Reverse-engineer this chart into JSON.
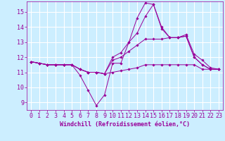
{
  "background_color": "#cceeff",
  "grid_color": "#b8d8d8",
  "line_color": "#990099",
  "marker_color": "#990099",
  "xlabel": "Windchill (Refroidissement éolien,°C)",
  "xlabel_fontsize": 6.0,
  "tick_fontsize": 6.0,
  "xlim": [
    -0.5,
    23.5
  ],
  "ylim": [
    8.5,
    15.7
  ],
  "yticks": [
    9,
    10,
    11,
    12,
    13,
    14,
    15
  ],
  "xticks": [
    0,
    1,
    2,
    3,
    4,
    5,
    6,
    7,
    8,
    9,
    10,
    11,
    12,
    13,
    14,
    15,
    16,
    17,
    18,
    19,
    20,
    21,
    22,
    23
  ],
  "series": [
    [
      11.7,
      11.6,
      11.5,
      11.5,
      11.5,
      11.5,
      10.8,
      9.8,
      8.8,
      9.5,
      11.6,
      11.6,
      13.0,
      13.6,
      14.7,
      15.5,
      13.9,
      13.3,
      13.3,
      13.4,
      12.0,
      11.5,
      11.2,
      11.2
    ],
    [
      11.7,
      11.6,
      11.5,
      11.5,
      11.5,
      11.5,
      11.2,
      11.0,
      11.0,
      10.9,
      11.0,
      11.1,
      11.2,
      11.3,
      11.5,
      11.5,
      11.5,
      11.5,
      11.5,
      11.5,
      11.5,
      11.2,
      11.2,
      11.2
    ],
    [
      11.7,
      11.6,
      11.5,
      11.5,
      11.5,
      11.5,
      11.2,
      11.0,
      11.0,
      10.9,
      11.8,
      12.0,
      12.4,
      12.8,
      13.2,
      13.2,
      13.2,
      13.3,
      13.3,
      13.4,
      12.0,
      11.5,
      11.2,
      11.2
    ],
    [
      11.7,
      11.6,
      11.5,
      11.5,
      11.5,
      11.5,
      11.2,
      11.0,
      11.0,
      10.9,
      12.0,
      12.3,
      13.0,
      14.6,
      15.6,
      15.5,
      14.0,
      13.3,
      13.3,
      13.5,
      12.2,
      11.8,
      11.3,
      11.2
    ]
  ]
}
